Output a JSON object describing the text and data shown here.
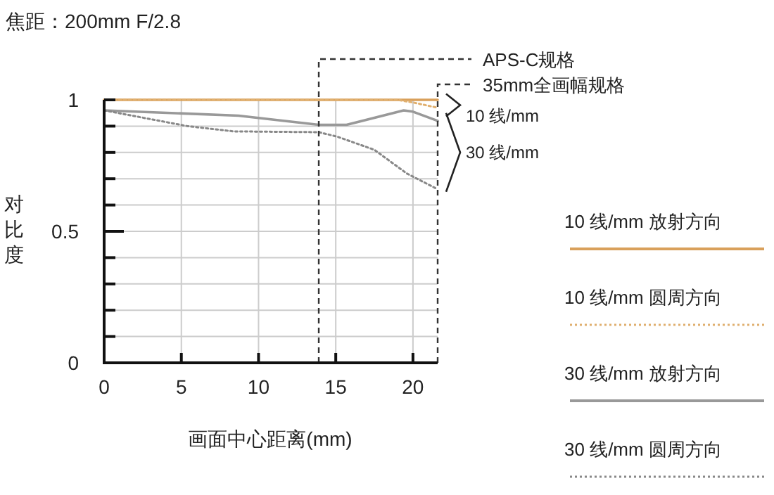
{
  "chart_data": {
    "type": "line",
    "title": "焦距：200mm   F/2.8",
    "xlabel": "画面中心距离(mm)",
    "ylabel": "对比度",
    "xlim": [
      0,
      21.6
    ],
    "ylim": [
      0,
      1
    ],
    "xticks": [
      0,
      5,
      10,
      15,
      20
    ],
    "yticks": [
      0,
      {
        "value": 0.1,
        "label": null
      },
      {
        "value": 0.2,
        "label": null
      },
      {
        "value": 0.3,
        "label": null
      },
      {
        "value": 0.4,
        "label": null
      },
      0.5,
      {
        "value": 0.6,
        "label": null
      },
      {
        "value": 0.7,
        "label": null
      },
      {
        "value": 0.8,
        "label": null
      },
      {
        "value": 0.9,
        "label": null
      },
      1
    ],
    "grid": true,
    "legend": "right",
    "series": [
      {
        "name": "10 线/mm  放射方向",
        "color": "#d9a05b",
        "line_style": "solid",
        "x": [
          0,
          5,
          10,
          15,
          20,
          21.6
        ],
        "values": [
          1.0,
          1.0,
          1.0,
          1.0,
          1.0,
          1.0
        ]
      },
      {
        "name": "10 线/mm  圆周方向",
        "color": "#e0b070",
        "line_style": "dotted",
        "x": [
          0,
          5,
          10,
          15,
          19,
          20,
          21.6
        ],
        "values": [
          1.0,
          1.0,
          1.0,
          1.0,
          1.0,
          0.99,
          0.97
        ]
      },
      {
        "name": "30 线/mm  放射方向",
        "color": "#999999",
        "line_style": "solid",
        "x": [
          0,
          8.7,
          13.9,
          15.7,
          19.4,
          20,
          21.6
        ],
        "values": [
          0.96,
          0.94,
          0.905,
          0.905,
          0.96,
          0.955,
          0.92
        ]
      },
      {
        "name": "30 线/mm  圆周方向",
        "color": "#888888",
        "line_style": "dotted",
        "x": [
          0,
          5.4,
          8.4,
          13.9,
          15.1,
          17.5,
          19.6,
          21.6
        ],
        "values": [
          0.96,
          0.9,
          0.88,
          0.877,
          0.86,
          0.81,
          0.72,
          0.66
        ]
      }
    ],
    "ref_lines": [
      {
        "axis": "x",
        "value": 13.9,
        "label": "APS-C规格",
        "line_style": "dashed",
        "color": "#333333"
      },
      {
        "axis": "x",
        "value": 21.6,
        "label": "35mm全画幅规格",
        "line_style": "dashed",
        "color": "#333333"
      }
    ],
    "annotations": [
      {
        "text": "10 线/mm",
        "x": 21.6,
        "y": 0.98
      },
      {
        "text": "30 线/mm",
        "x": 21.6,
        "y": 0.8
      }
    ]
  }
}
